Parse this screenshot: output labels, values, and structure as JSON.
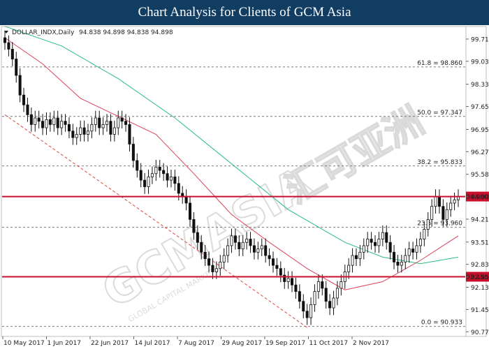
{
  "header": {
    "title": "Chart Analysis for Clients of GCM Asia"
  },
  "info": {
    "collapse_icon": "triangle-down-icon",
    "symbol": "DOLLAR_INDX,Daily",
    "ohlc": "94.838 94.898 94.838 94.898"
  },
  "watermark": {
    "text": "GCMASIA",
    "text_cn": "汇可亚洲",
    "sub": "GLOBAL CAPITAL MARKETS"
  },
  "colors": {
    "header_bg": "#123d63",
    "support_resistance": "#c8102e",
    "fib_line": "#777777",
    "ma_fast": "#d9435a",
    "ma_slow": "#2bbd7e",
    "trendline": "#e0473c",
    "candle": "#111111"
  },
  "chart_data": {
    "type": "candlestick",
    "instrument": "DOLLAR_INDX",
    "timeframe": "Daily",
    "ylim": [
      90.67,
      100.05
    ],
    "yticks": [
      "99.710",
      "99.030",
      "98.330",
      "97.650",
      "96.950",
      "96.270",
      "95.580",
      "94.900",
      "94.210",
      "93.510",
      "92.830",
      "92.450",
      "92.130",
      "91.450",
      "90.770"
    ],
    "xticks": [
      "10 May 2017",
      "1 Jun 2017",
      "22 Jun 2017",
      "14 Jul 2017",
      "7 Aug 2017",
      "29 Aug 2017",
      "19 Sep 2017",
      "11 Oct 2017",
      "2 Nov 2017"
    ],
    "fib_levels": [
      {
        "label": "61.8 = 98.860",
        "value": 98.86
      },
      {
        "label": "50.0 = 97.347",
        "value": 97.347
      },
      {
        "label": "38.2 = 95.833",
        "value": 95.833
      },
      {
        "label": "23.6 = 93.960",
        "value": 93.96
      },
      {
        "label": "0.0 = 90.933",
        "value": 90.933
      }
    ],
    "horizontal_levels": [
      {
        "label": "94.900",
        "value": 94.9
      },
      {
        "label": "92.450",
        "value": 92.45
      }
    ],
    "closes": [
      99.6,
      99.4,
      99.1,
      98.6,
      98.0,
      97.7,
      97.4,
      97.1,
      97.3,
      97.2,
      97.0,
      97.25,
      97.1,
      97.3,
      97.0,
      97.2,
      97.1,
      96.9,
      96.7,
      96.8,
      97.0,
      96.8,
      96.9,
      97.1,
      97.3,
      97.0,
      97.1,
      97.2,
      96.8,
      97.0,
      97.3,
      97.2,
      97.1,
      96.5,
      96.0,
      95.7,
      95.4,
      95.2,
      95.5,
      95.6,
      95.8,
      95.7,
      95.6,
      95.4,
      95.5,
      95.3,
      95.0,
      94.9,
      94.7,
      94.2,
      93.8,
      93.5,
      93.2,
      93.0,
      92.8,
      92.6,
      92.7,
      92.9,
      93.1,
      93.4,
      93.7,
      93.5,
      93.3,
      93.5,
      93.6,
      93.4,
      93.2,
      93.3,
      93.4,
      93.1,
      93.0,
      92.8,
      92.7,
      92.5,
      92.3,
      92.4,
      92.2,
      92.0,
      91.7,
      91.4,
      91.2,
      91.6,
      92.0,
      92.3,
      92.1,
      91.7,
      91.5,
      91.8,
      92.1,
      92.3,
      92.6,
      92.8,
      93.1,
      93.0,
      93.2,
      93.4,
      93.6,
      93.5,
      93.4,
      93.6,
      93.8,
      93.5,
      93.2,
      92.9,
      92.8,
      92.9,
      93.1,
      93.3,
      93.2,
      93.4,
      93.6,
      93.9,
      94.2,
      94.6,
      94.9,
      94.6,
      94.2,
      94.5,
      94.7,
      94.8,
      94.9
    ],
    "ma_fast": [
      [
        0,
        99.75
      ],
      [
        10,
        98.95
      ],
      [
        20,
        97.9
      ],
      [
        30,
        97.35
      ],
      [
        40,
        96.8
      ],
      [
        50,
        95.6
      ],
      [
        60,
        94.35
      ],
      [
        70,
        93.5
      ],
      [
        80,
        92.7
      ],
      [
        90,
        92.05
      ],
      [
        100,
        92.3
      ],
      [
        110,
        92.95
      ],
      [
        120,
        93.7
      ]
    ],
    "ma_slow": [
      [
        0,
        100.1
      ],
      [
        15,
        99.5
      ],
      [
        30,
        98.5
      ],
      [
        45,
        97.3
      ],
      [
        60,
        95.9
      ],
      [
        75,
        94.5
      ],
      [
        90,
        93.5
      ],
      [
        100,
        93.05
      ],
      [
        110,
        92.85
      ],
      [
        120,
        93.05
      ]
    ],
    "trendline": [
      [
        0,
        97.4
      ],
      [
        80,
        90.9
      ]
    ]
  }
}
